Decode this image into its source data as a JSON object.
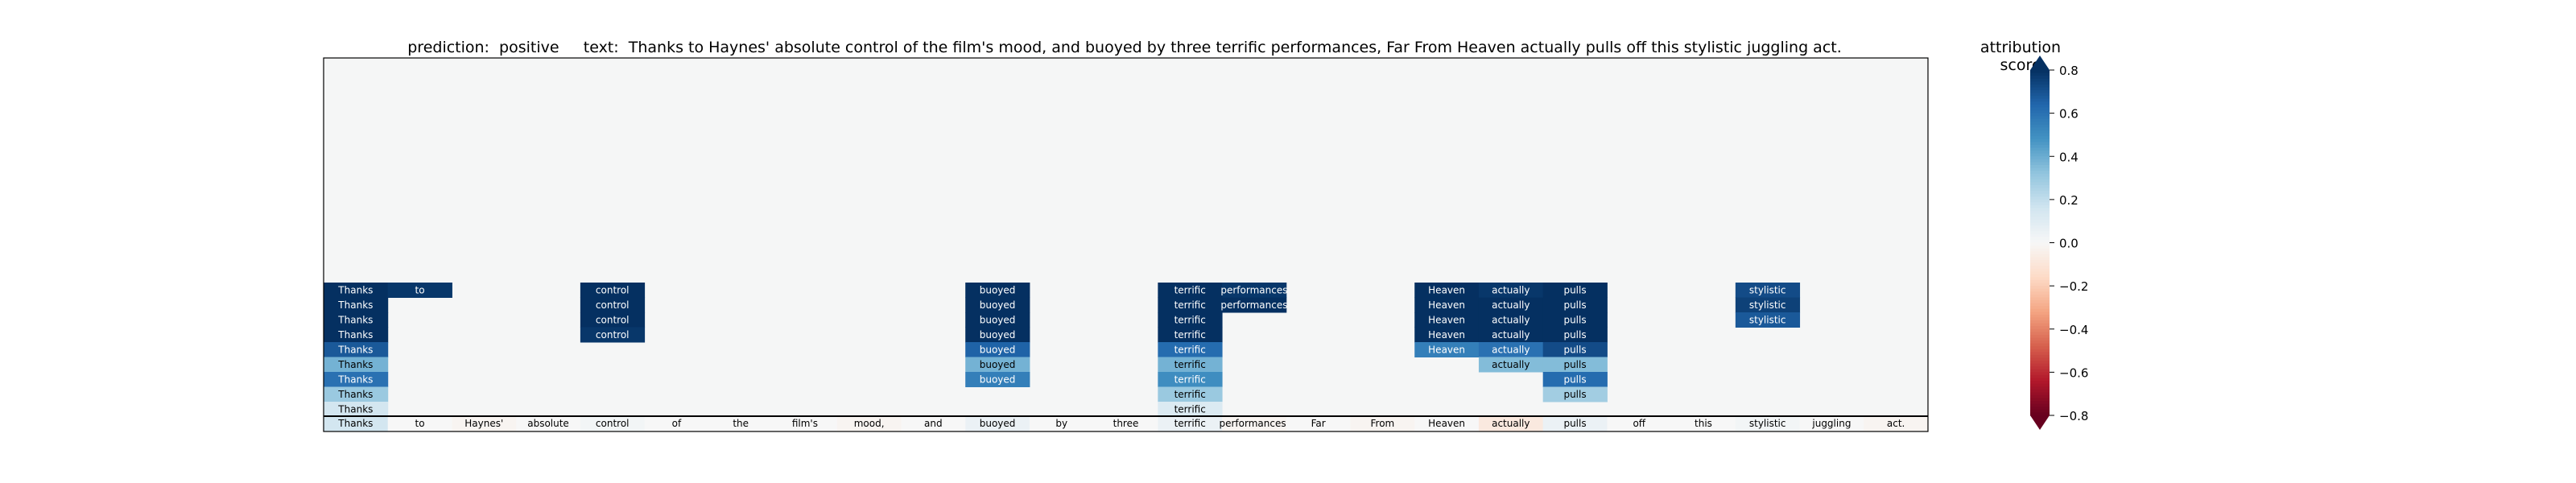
{
  "title": "prediction:  positive     text:  Thanks to Haynes' absolute control of the film's mood, and buoyed by three terrific performances, Far From Heaven actually pulls off this stylistic juggling act.",
  "colorbar": {
    "label": "attribution score",
    "ticks": [
      "0.8",
      "0.6",
      "0.4",
      "0.2",
      "0.0",
      "−0.2",
      "−0.4",
      "−0.6",
      "−0.8"
    ],
    "range": [
      -0.8,
      0.8
    ],
    "colormap": "RdBu",
    "extend": "both"
  },
  "chart_data": {
    "type": "heatmap",
    "tokens": [
      "Thanks",
      "to",
      "Haynes'",
      "absolute",
      "control",
      "of",
      "the",
      "film's",
      "mood,",
      "and",
      "buoyed",
      "by",
      "three",
      "terrific",
      "performances,",
      "Far",
      "From",
      "Heaven",
      "actually",
      "pulls",
      "off",
      "this",
      "stylistic",
      "juggling",
      "act."
    ],
    "bottom_row_scores": [
      0.15,
      0.0,
      -0.02,
      0.0,
      0.02,
      0.0,
      0.0,
      0.0,
      -0.02,
      0.0,
      0.05,
      0.0,
      0.0,
      0.05,
      -0.02,
      0.0,
      -0.02,
      0.0,
      -0.08,
      0.05,
      0.0,
      0.0,
      0.02,
      0.0,
      -0.02
    ],
    "rows": [
      {
        "Thanks": 0.85,
        "to": 0.78,
        "control": 0.8,
        "buoyed": 0.82,
        "terrific": 0.85,
        "performances": 0.78,
        "Heaven": 0.8,
        "actually": 0.78,
        "pulls": 0.82,
        "stylistic": 0.72
      },
      {
        "Thanks": 0.9,
        "control": 0.82,
        "buoyed": 0.9,
        "terrific": 0.9,
        "performances": 0.82,
        "Heaven": 0.85,
        "actually": 0.82,
        "pulls": 0.85,
        "stylistic": 0.75
      },
      {
        "Thanks": 0.85,
        "control": 0.82,
        "buoyed": 0.85,
        "terrific": 0.85,
        "Heaven": 0.82,
        "actually": 0.85,
        "pulls": 0.82,
        "stylistic": 0.68
      },
      {
        "Thanks": 0.88,
        "control": 0.78,
        "buoyed": 0.82,
        "terrific": 0.88,
        "Heaven": 0.82,
        "actually": 0.82,
        "pulls": 0.82
      },
      {
        "Thanks": 0.68,
        "buoyed": 0.65,
        "terrific": 0.62,
        "Heaven": 0.55,
        "actually": 0.6,
        "pulls": 0.72
      },
      {
        "Thanks": 0.38,
        "buoyed": 0.38,
        "terrific": 0.38,
        "actually": 0.35,
        "pulls": 0.35
      },
      {
        "Thanks": 0.6,
        "buoyed": 0.55,
        "terrific": 0.5,
        "pulls": 0.62
      },
      {
        "Thanks": 0.3,
        "terrific": 0.3,
        "pulls": 0.28
      },
      {
        "Thanks": 0.15,
        "terrific": 0.12
      }
    ]
  }
}
